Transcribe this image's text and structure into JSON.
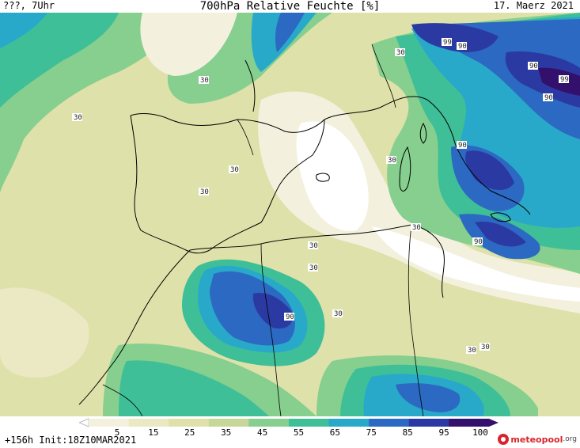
{
  "header": {
    "left": "???, 7Uhr",
    "title": "700hPa Relative Feuchte [%]",
    "date": "17. Maerz 2021"
  },
  "map": {
    "contour_labels": [
      "30",
      "30",
      "30",
      "30",
      "30",
      "30",
      "30",
      "30",
      "30",
      "30",
      "30",
      "30",
      "90",
      "90",
      "90",
      "90",
      "90",
      "99",
      "99"
    ]
  },
  "legend": {
    "ticks": [
      "5",
      "15",
      "25",
      "35",
      "45",
      "55",
      "65",
      "75",
      "85",
      "95",
      "100"
    ],
    "colors": [
      "#ffffff",
      "#f3f1de",
      "#ebe9c4",
      "#dfe1aa",
      "#c7d79a",
      "#86cf8e",
      "#3fbf97",
      "#29a9c9",
      "#2c69c2",
      "#2b3aa2",
      "#33106c"
    ]
  },
  "footer": {
    "run": "+156h Init:18Z10MAR2021",
    "brand_name": "meteopool",
    "brand_tld": ".org"
  }
}
